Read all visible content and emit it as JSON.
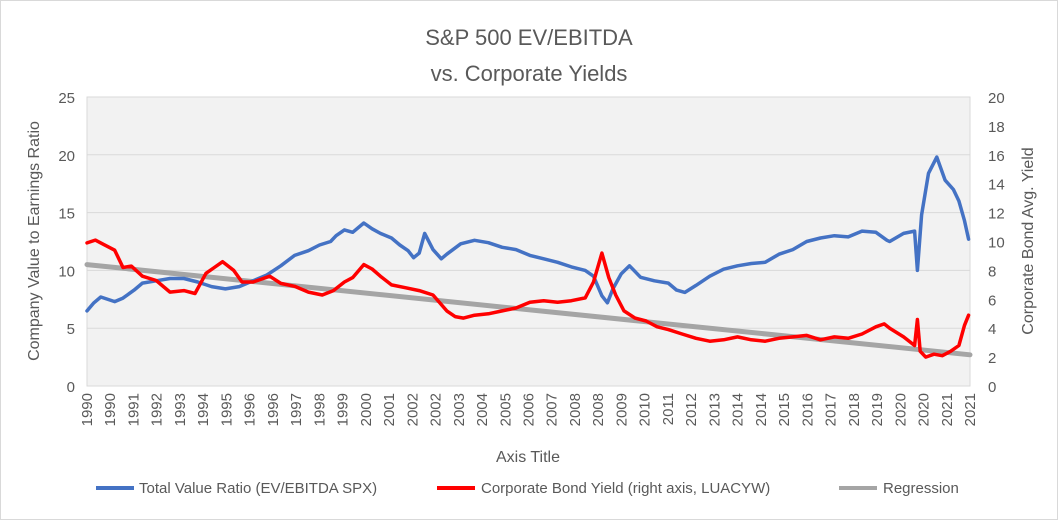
{
  "chart_data": {
    "type": "line",
    "title": "S&P 500 EV/EBITDA",
    "subtitle": "vs. Corporate Yields",
    "xlabel": "Axis Title",
    "ylabel": "Company Value to Earnings Ratio",
    "y2label": "Corporate Bond Avg. Yield",
    "xlim": [
      1990,
      2021.9
    ],
    "ylim": [
      0,
      25
    ],
    "y2lim": [
      0,
      20
    ],
    "x_ticks": [
      "1990",
      "1990",
      "1991",
      "1992",
      "1993",
      "1994",
      "1995",
      "1996",
      "1996",
      "1997",
      "1998",
      "1999",
      "2000",
      "2001",
      "2002",
      "2002",
      "2003",
      "2004",
      "2005",
      "2006",
      "2007",
      "2008",
      "2008",
      "2009",
      "2010",
      "2011",
      "2012",
      "2013",
      "2014",
      "2014",
      "2015",
      "2016",
      "2017",
      "2018",
      "2019",
      "2020",
      "2020",
      "2021",
      "2021"
    ],
    "y_ticks": [
      "0",
      "5",
      "10",
      "15",
      "20",
      "25"
    ],
    "y2_ticks": [
      "0",
      "2",
      "4",
      "6",
      "8",
      "10",
      "12",
      "14",
      "16",
      "18",
      "20"
    ],
    "grid": true,
    "legend_position": "bottom",
    "colors": {
      "series1": "#4472c4",
      "series2": "#ff0000",
      "series3": "#a5a5a5",
      "plot_bg": "#f2f2f2",
      "grid": "#d9d9d9"
    },
    "series": [
      {
        "name": "Total Value Ratio (EV/EBITDA SPX)",
        "axis": "left",
        "x": [
          1990.0,
          1990.25,
          1990.5,
          1991.0,
          1991.3,
          1991.7,
          1992.0,
          1992.5,
          1993.0,
          1993.5,
          1994.0,
          1994.5,
          1995.0,
          1995.5,
          1996.0,
          1996.5,
          1997.0,
          1997.5,
          1998.0,
          1998.4,
          1998.8,
          1999.0,
          1999.3,
          1999.6,
          2000.0,
          2000.3,
          2000.6,
          2001.0,
          2001.3,
          2001.6,
          2001.8,
          2002.0,
          2002.2,
          2002.5,
          2002.8,
          2003.0,
          2003.5,
          2004.0,
          2004.5,
          2005.0,
          2005.5,
          2006.0,
          2006.5,
          2007.0,
          2007.5,
          2008.0,
          2008.3,
          2008.6,
          2008.8,
          2009.0,
          2009.3,
          2009.6,
          2010.0,
          2010.5,
          2011.0,
          2011.3,
          2011.6,
          2012.0,
          2012.5,
          2013.0,
          2013.5,
          2014.0,
          2014.5,
          2015.0,
          2015.5,
          2016.0,
          2016.5,
          2017.0,
          2017.5,
          2018.0,
          2018.5,
          2018.9,
          2019.0,
          2019.5,
          2019.9,
          2020.0,
          2020.15,
          2020.4,
          2020.7,
          2021.0,
          2021.3,
          2021.5,
          2021.7,
          2021.85
        ],
        "y": [
          6.5,
          7.2,
          7.7,
          7.3,
          7.6,
          8.3,
          8.9,
          9.1,
          9.3,
          9.3,
          9.0,
          8.6,
          8.4,
          8.6,
          9.1,
          9.6,
          10.4,
          11.3,
          11.7,
          12.2,
          12.5,
          13.0,
          13.5,
          13.3,
          14.1,
          13.6,
          13.2,
          12.8,
          12.2,
          11.7,
          11.1,
          11.5,
          13.2,
          11.8,
          11.0,
          11.4,
          12.3,
          12.6,
          12.4,
          12.0,
          11.8,
          11.3,
          11.0,
          10.7,
          10.3,
          10.0,
          9.5,
          7.8,
          7.2,
          8.4,
          9.7,
          10.4,
          9.4,
          9.1,
          8.9,
          8.3,
          8.1,
          8.7,
          9.5,
          10.1,
          10.4,
          10.6,
          10.7,
          11.4,
          11.8,
          12.5,
          12.8,
          13.0,
          12.9,
          13.4,
          13.3,
          12.6,
          12.5,
          13.2,
          13.4,
          10.0,
          14.8,
          18.4,
          19.8,
          17.8,
          17.0,
          16.0,
          14.3,
          12.7
        ]
      },
      {
        "name": "Corporate Bond Yield (right axis, LUACYW)",
        "axis": "right",
        "x": [
          1990.0,
          1990.3,
          1990.6,
          1991.0,
          1991.3,
          1991.6,
          1992.0,
          1992.5,
          1993.0,
          1993.5,
          1993.9,
          1994.3,
          1994.6,
          1994.9,
          1995.3,
          1995.6,
          1996.0,
          1996.3,
          1996.6,
          1997.0,
          1997.5,
          1998.0,
          1998.5,
          1998.9,
          1999.3,
          1999.6,
          2000.0,
          2000.3,
          2000.6,
          2001.0,
          2001.5,
          2002.0,
          2002.5,
          2003.0,
          2003.3,
          2003.6,
          2004.0,
          2004.5,
          2005.0,
          2005.5,
          2006.0,
          2006.5,
          2007.0,
          2007.5,
          2008.0,
          2008.3,
          2008.6,
          2008.85,
          2009.1,
          2009.4,
          2009.8,
          2010.2,
          2010.6,
          2011.0,
          2011.5,
          2012.0,
          2012.5,
          2013.0,
          2013.5,
          2014.0,
          2014.5,
          2015.0,
          2015.5,
          2016.0,
          2016.5,
          2017.0,
          2017.5,
          2018.0,
          2018.5,
          2018.8,
          2019.0,
          2019.5,
          2019.9,
          2020.0,
          2020.1,
          2020.3,
          2020.6,
          2020.9,
          2021.2,
          2021.5,
          2021.7,
          2021.85
        ],
        "y": [
          9.9,
          10.1,
          9.8,
          9.4,
          8.2,
          8.3,
          7.6,
          7.3,
          6.5,
          6.6,
          6.4,
          7.8,
          8.2,
          8.6,
          8.0,
          7.2,
          7.2,
          7.4,
          7.6,
          7.1,
          6.9,
          6.5,
          6.3,
          6.6,
          7.2,
          7.5,
          8.4,
          8.1,
          7.6,
          7.0,
          6.8,
          6.6,
          6.3,
          5.2,
          4.8,
          4.7,
          4.9,
          5.0,
          5.2,
          5.4,
          5.8,
          5.9,
          5.8,
          5.9,
          6.1,
          7.2,
          9.2,
          7.5,
          6.3,
          5.2,
          4.7,
          4.5,
          4.1,
          3.9,
          3.6,
          3.3,
          3.1,
          3.2,
          3.4,
          3.2,
          3.1,
          3.3,
          3.4,
          3.5,
          3.2,
          3.4,
          3.3,
          3.6,
          4.1,
          4.3,
          4.0,
          3.4,
          2.8,
          4.6,
          2.4,
          2.0,
          2.2,
          2.1,
          2.4,
          2.8,
          4.2,
          4.9
        ]
      },
      {
        "name": "Regression",
        "axis": "left",
        "x": [
          1990.0,
          2021.9
        ],
        "y": [
          10.5,
          2.7
        ]
      }
    ]
  }
}
